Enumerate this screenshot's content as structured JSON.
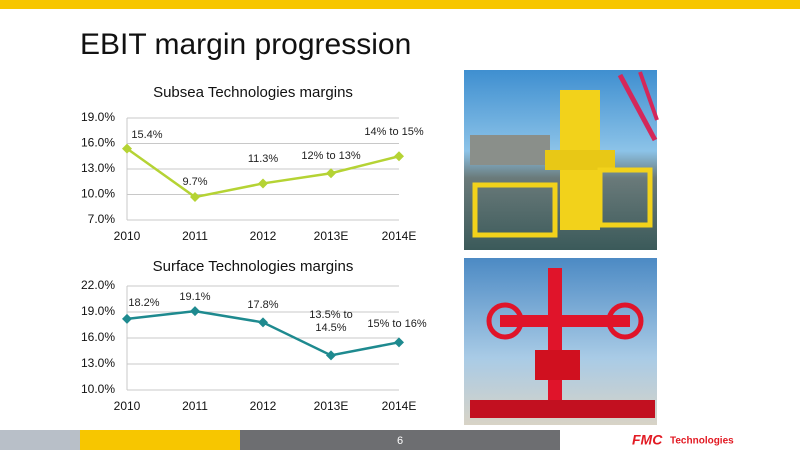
{
  "title": "EBIT margin progression",
  "page_number": "6",
  "logo": {
    "brand": "FMC",
    "text": "Technologies"
  },
  "chart_data": [
    {
      "type": "line",
      "title": "Subsea Technologies margins",
      "categories": [
        "2010",
        "2011",
        "2012",
        "2013E",
        "2014E"
      ],
      "values": [
        15.4,
        9.7,
        11.3,
        12.5,
        14.5
      ],
      "value_labels": [
        "15.4%",
        "9.7%",
        "11.3%",
        "12% to 13%",
        "14% to 15%"
      ],
      "color": "#b5d334",
      "ylim": [
        7,
        19
      ],
      "yticks": [
        {
          "value": 7,
          "label": "7.0%"
        },
        {
          "value": 10,
          "label": "10.0%"
        },
        {
          "value": 13,
          "label": "13.0%"
        },
        {
          "value": 16,
          "label": "16.0%"
        },
        {
          "value": 19,
          "label": "19.0%"
        }
      ],
      "grid": true
    },
    {
      "type": "line",
      "title": "Surface Technologies margins",
      "categories": [
        "2010",
        "2011",
        "2012",
        "2013E",
        "2014E"
      ],
      "values": [
        18.2,
        19.1,
        17.8,
        14.0,
        15.5
      ],
      "value_labels": [
        "18.2%",
        "19.1%",
        "17.8%",
        "13.5% to 14.5%",
        "15% to 16%"
      ],
      "color": "#1e8a8f",
      "ylim": [
        10,
        22
      ],
      "yticks": [
        {
          "value": 10,
          "label": "10.0%"
        },
        {
          "value": 13,
          "label": "13.0%"
        },
        {
          "value": 16,
          "label": "16.0%"
        },
        {
          "value": 19,
          "label": "19.0%"
        },
        {
          "value": 22,
          "label": "22.0%"
        }
      ],
      "grid": true
    }
  ]
}
